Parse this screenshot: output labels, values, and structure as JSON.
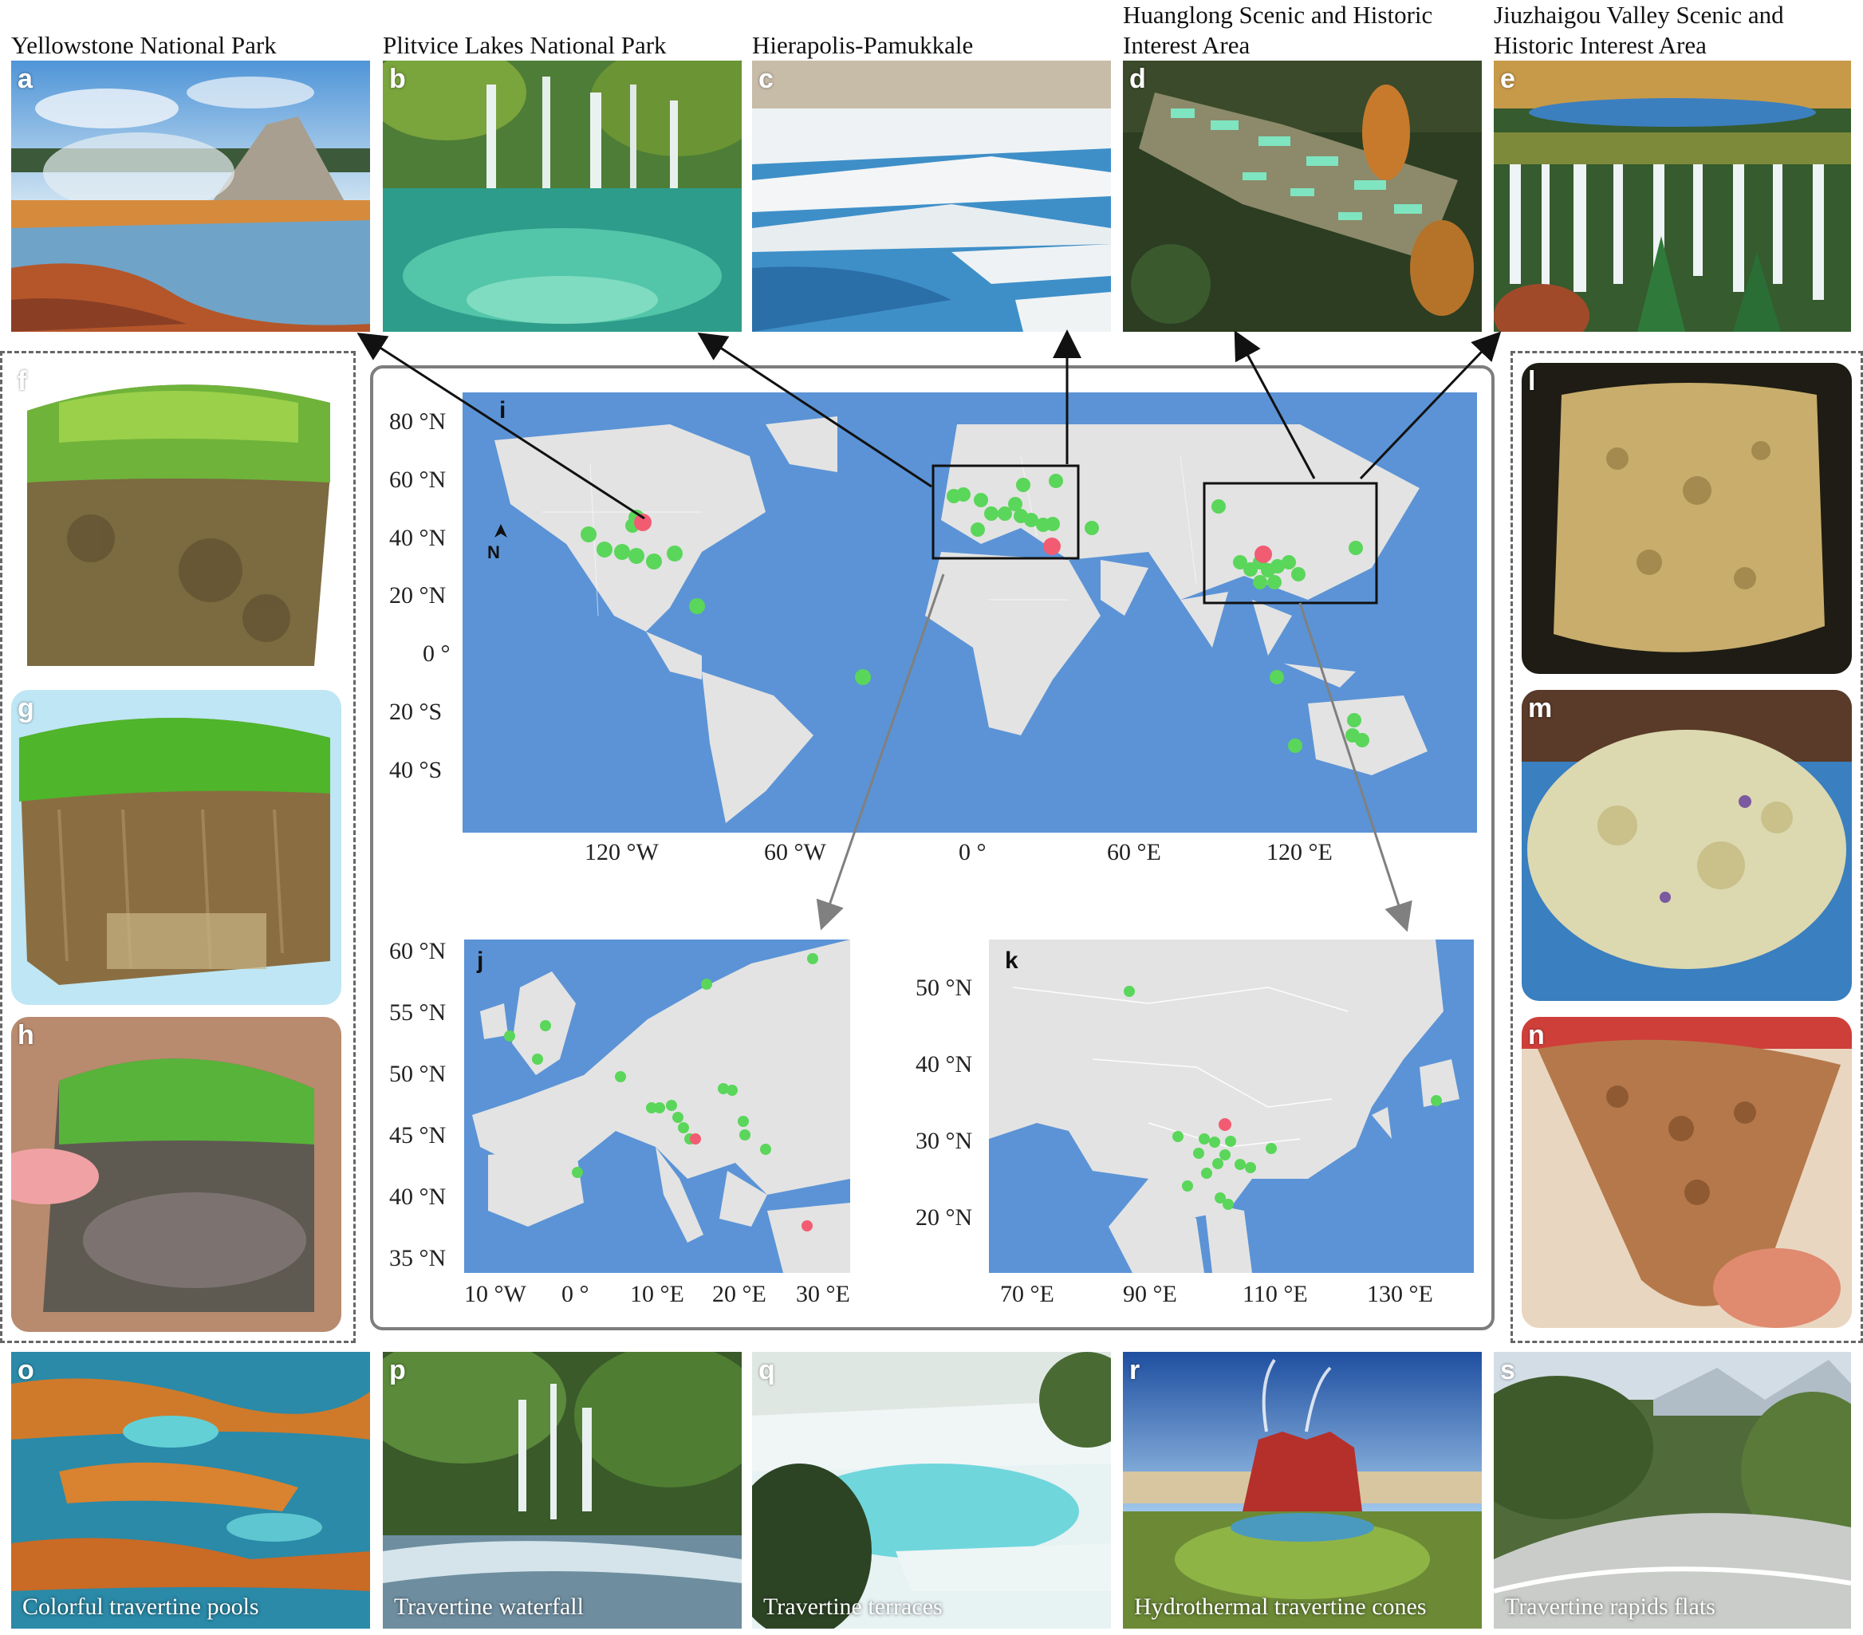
{
  "top_sites": [
    {
      "label": "a",
      "title_line1": "Yellowstone National Park",
      "title_line2": ""
    },
    {
      "label": "b",
      "title_line1": "Plitvice Lakes National Park",
      "title_line2": ""
    },
    {
      "label": "c",
      "title_line1": "Hierapolis-Pamukkale",
      "title_line2": ""
    },
    {
      "label": "d",
      "title_line1": "Huanglong Scenic and Historic",
      "title_line2": "Interest Area"
    },
    {
      "label": "e",
      "title_line1": "Jiuzhaigou Valley Scenic and",
      "title_line2": "Historic Interest Area"
    }
  ],
  "left_panels": [
    {
      "label": "f"
    },
    {
      "label": "g"
    },
    {
      "label": "h"
    }
  ],
  "right_panels": [
    {
      "label": "l"
    },
    {
      "label": "m"
    },
    {
      "label": "n"
    }
  ],
  "bottom_panels": [
    {
      "label": "o",
      "caption": "Colorful travertine pools"
    },
    {
      "label": "p",
      "caption": "Travertine waterfall"
    },
    {
      "label": "q",
      "caption": "Travertine terraces"
    },
    {
      "label": "r",
      "caption": "Hydrothermal travertine cones"
    },
    {
      "label": "s",
      "caption": "Travertine rapids flats"
    }
  ],
  "world_map": {
    "label": "i",
    "north_arrow": "N",
    "lat_ticks": [
      "80 °N",
      "60 °N",
      "40 °N",
      "20 °N",
      "0 °",
      "20 °S",
      "40 °S"
    ],
    "lon_ticks": [
      "120 °W",
      "60 °W",
      "0 °",
      "60 °E",
      "120 °E"
    ]
  },
  "europe_map": {
    "label": "j",
    "lat_ticks": [
      "60 °N",
      "55 °N",
      "50 °N",
      "45 °N",
      "40 °N",
      "35 °N"
    ],
    "lon_ticks": [
      "10 °W",
      "0 °",
      "10 °E",
      "20 °E",
      "30 °E"
    ]
  },
  "china_map": {
    "label": "k",
    "lat_ticks": [
      "50 °N",
      "40 °N",
      "30 °N",
      "20 °N"
    ],
    "lon_ticks": [
      "70 °E",
      "90 °E",
      "110 °E",
      "130 °E"
    ]
  },
  "colors": {
    "ocean": "#5b93d6",
    "land": "#e3e3e3",
    "site_green": "#5ad65a",
    "site_red": "#f25c72",
    "frame": "#7d7d7d"
  }
}
